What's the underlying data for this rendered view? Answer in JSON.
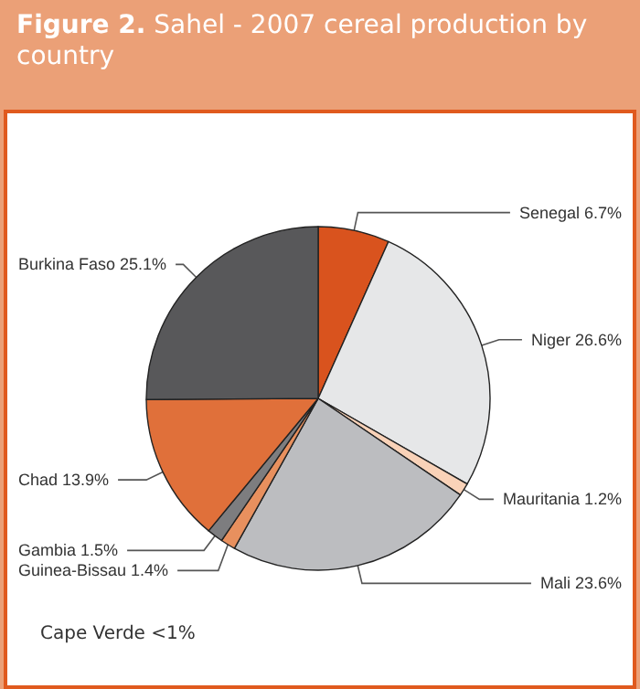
{
  "chart_data": {
    "type": "pie",
    "title": "Figure 2. Sahel - 2007 cereal production by country",
    "categories": [
      "Senegal",
      "Niger",
      "Mauritania",
      "Mali",
      "Guinea-Bissau",
      "Gambia",
      "Chad",
      "Burkina Faso"
    ],
    "values": [
      6.7,
      26.6,
      1.2,
      23.6,
      1.4,
      1.5,
      13.9,
      25.1
    ],
    "value_labels": [
      "6.7%",
      "26.6%",
      "1.2%",
      "23.6%",
      "1.4%",
      "1.5%",
      "13.9%",
      "25.1%"
    ],
    "colors": [
      "#d9531e",
      "#e6e7e8",
      "#f9d2b8",
      "#bcbdc0",
      "#e8905e",
      "#7d7d7f",
      "#e0703a",
      "#58585a"
    ],
    "annotations": [
      "Cape Verde <1%"
    ],
    "legend": false
  }
}
